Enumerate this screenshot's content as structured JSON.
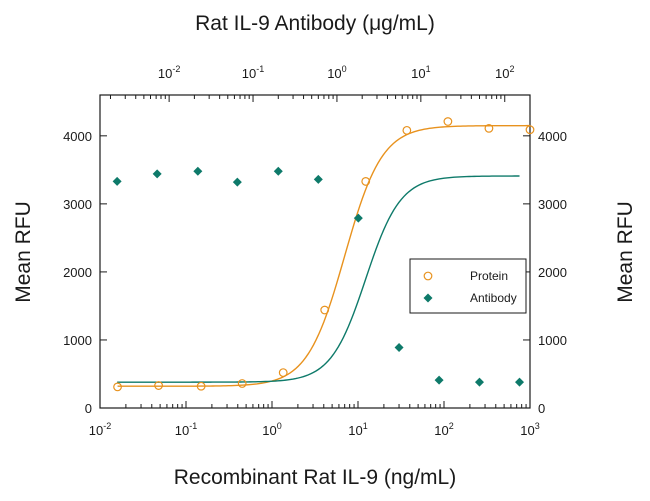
{
  "chart_data": {
    "type": "scatter",
    "title": "Rat IL-9 Antibody (μg/mL)",
    "xlabel": "Recombinant Rat IL-9 (ng/mL)",
    "ylabel_left": "Mean RFU",
    "ylabel_right": "Mean RFU",
    "x_scale": "log",
    "xlim": [
      0.01,
      1000
    ],
    "ylim": [
      0,
      4600
    ],
    "x_ticks": [
      {
        "base": "10",
        "exp": "-2"
      },
      {
        "base": "10",
        "exp": "-1"
      },
      {
        "base": "10",
        "exp": "0"
      },
      {
        "base": "10",
        "exp": "1"
      },
      {
        "base": "10",
        "exp": "2"
      },
      {
        "base": "10",
        "exp": "3"
      }
    ],
    "top_scale": "log",
    "top_xlim": [
      0.0015,
      200
    ],
    "top_ticks": [
      {
        "base": "10",
        "exp": "-2"
      },
      {
        "base": "10",
        "exp": "-1"
      },
      {
        "base": "10",
        "exp": "0"
      },
      {
        "base": "10",
        "exp": "1"
      },
      {
        "base": "10",
        "exp": "2"
      }
    ],
    "y_ticks": [
      "0",
      "1000",
      "2000",
      "3000",
      "4000"
    ],
    "legend_position": "middle-right",
    "series": [
      {
        "name": "Protein",
        "axis": "bottom",
        "marker": "open-circle",
        "color": "#e8921e",
        "x": [
          0.016,
          0.048,
          0.15,
          0.45,
          1.35,
          4.1,
          12.3,
          37,
          111,
          333,
          1000
        ],
        "y": [
          310,
          330,
          320,
          360,
          520,
          1440,
          3330,
          4080,
          4210,
          4110,
          4090
        ],
        "fit": {
          "bottom": 320,
          "top": 4150,
          "ec50": 7,
          "hill": 2.0
        }
      },
      {
        "name": "Antibody",
        "axis": "top",
        "marker": "filled-diamond",
        "color": "#0e7a6a",
        "x": [
          0.0024,
          0.0072,
          0.022,
          0.065,
          0.2,
          0.6,
          1.8,
          5.5,
          16.5,
          50,
          150
        ],
        "y": [
          3330,
          3440,
          3480,
          3320,
          3480,
          3360,
          2790,
          890,
          410,
          380,
          380
        ],
        "fit": {
          "top": 3410,
          "bottom": 380,
          "ec50": 2.2,
          "hill": 2.1
        }
      }
    ]
  }
}
